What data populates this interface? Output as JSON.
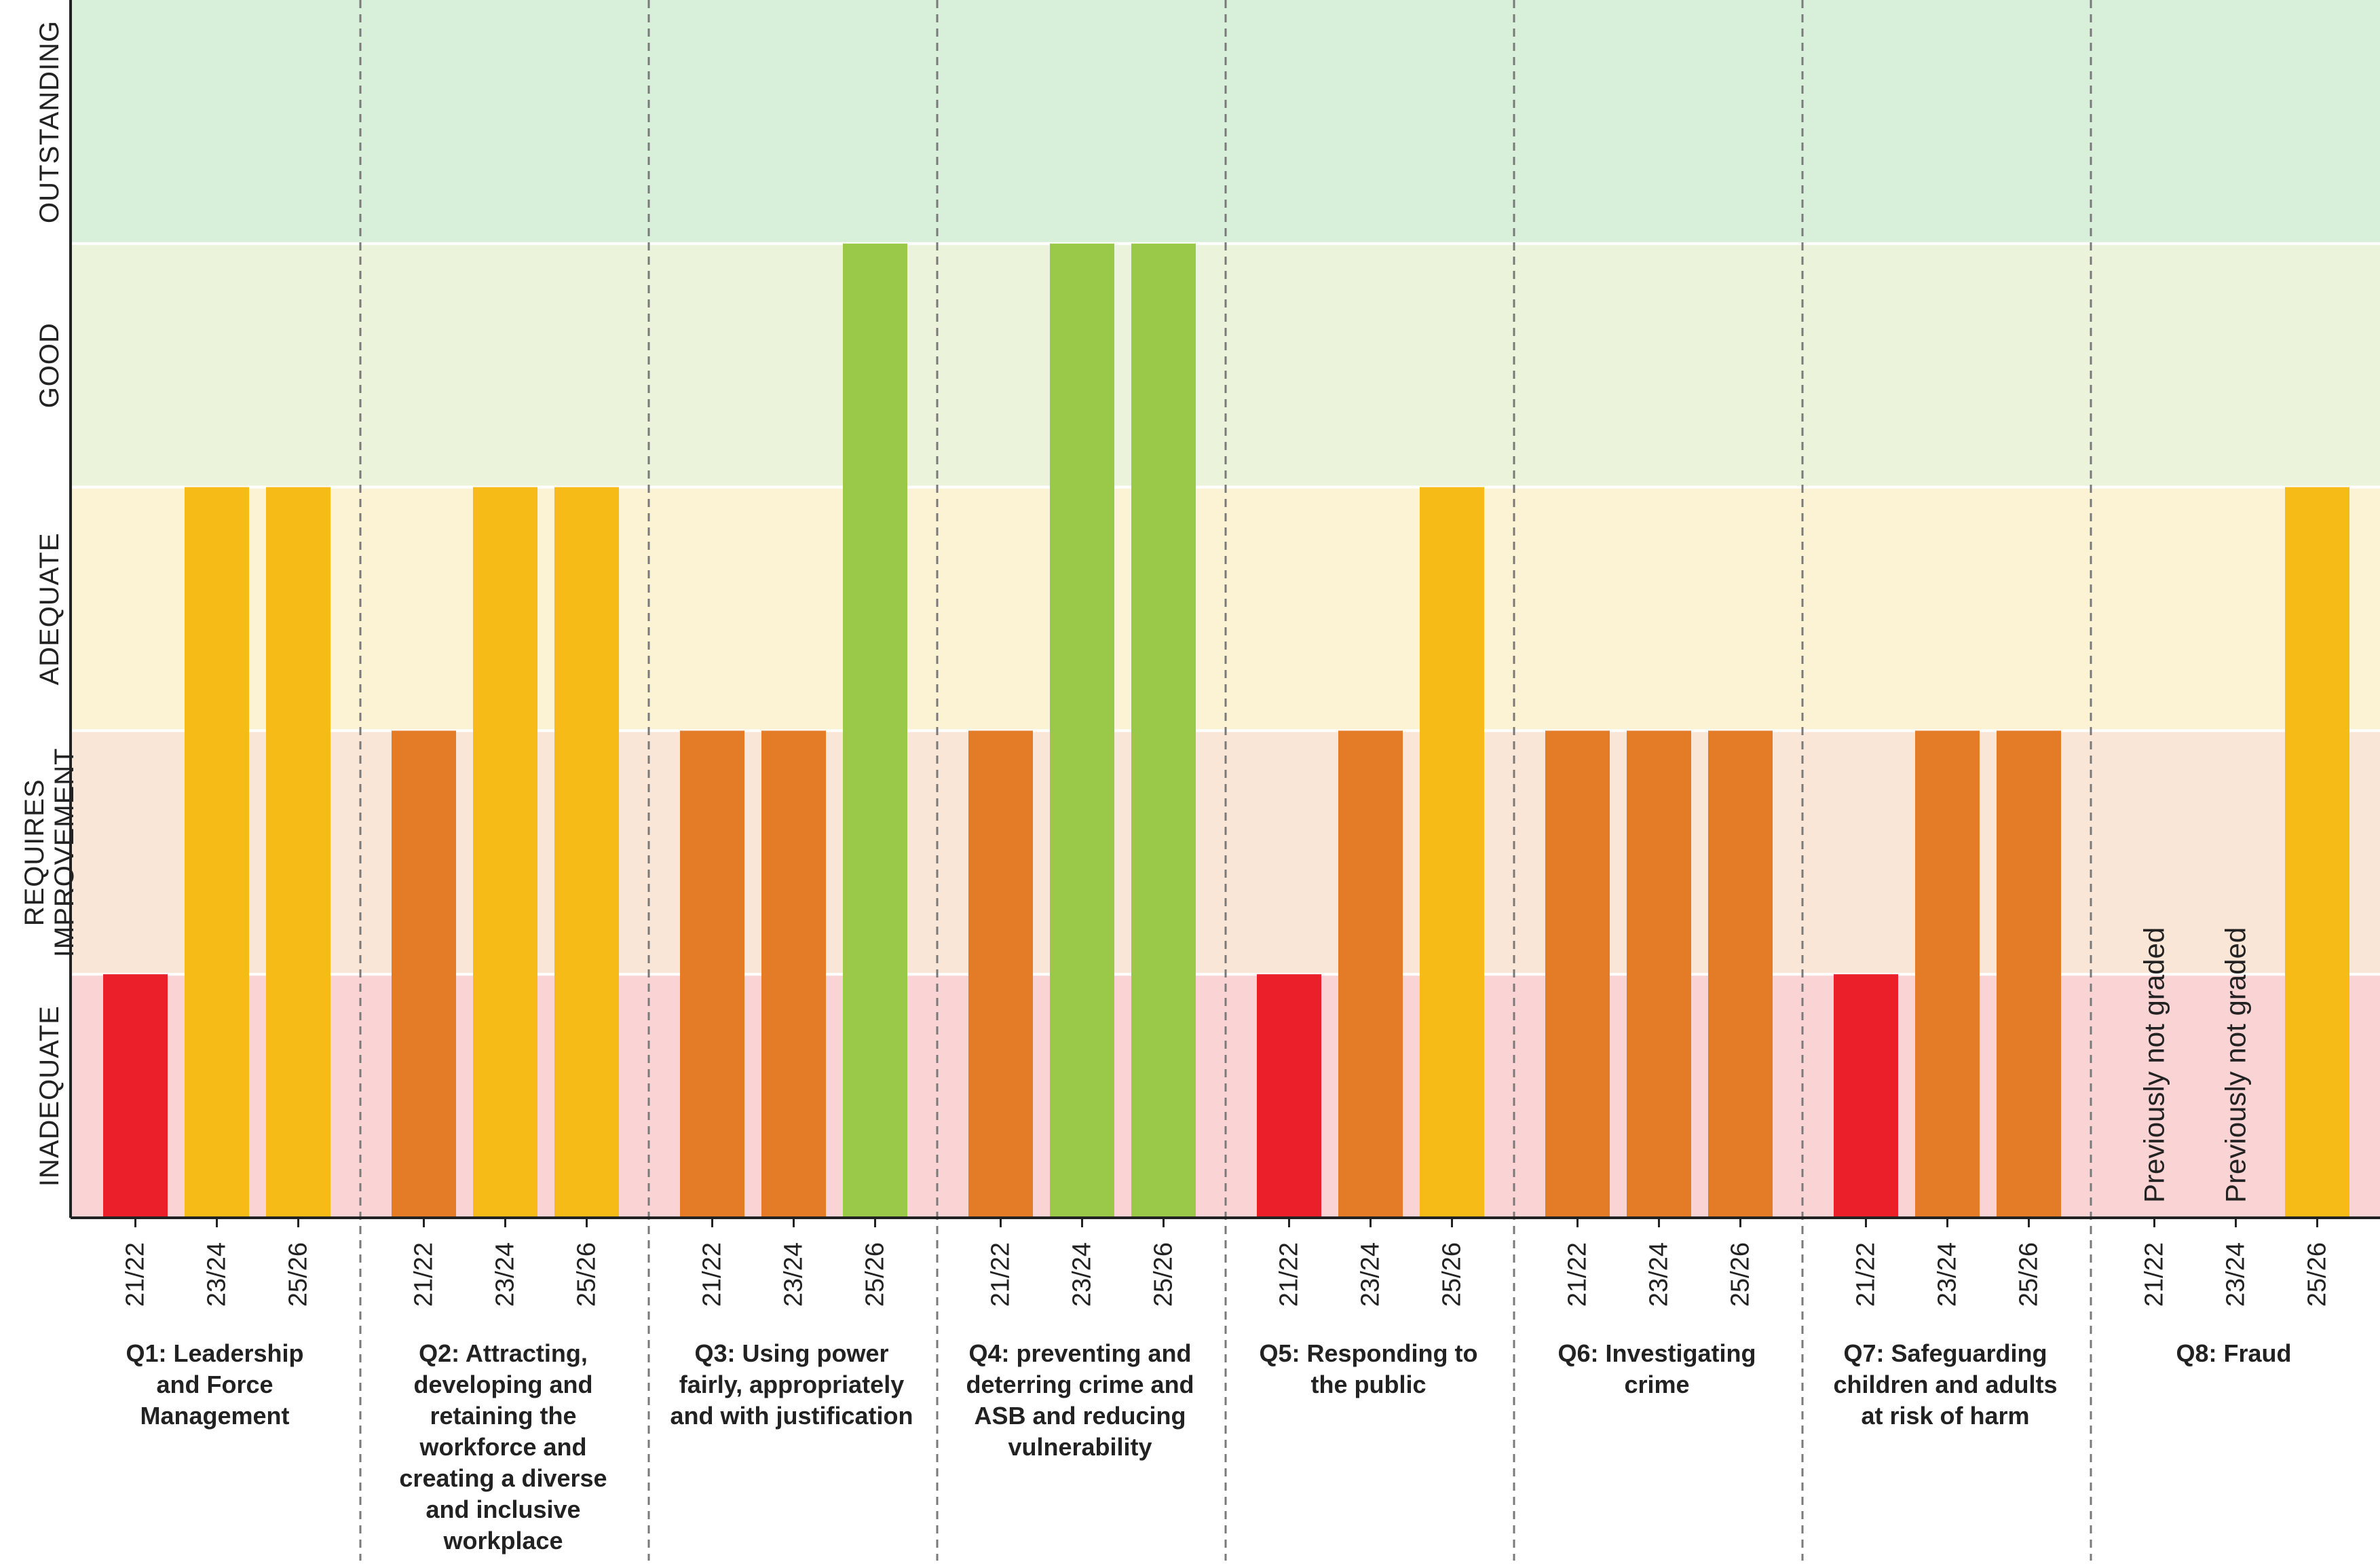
{
  "chart_data": {
    "type": "bar",
    "title": "",
    "xlabel": "",
    "ylabel": "",
    "grades": [
      "INADEQUATE",
      "REQUIRES IMPROVEMENT",
      "ADEQUATE",
      "GOOD",
      "OUTSTANDING"
    ],
    "grade_labels": [
      [
        "INADEQUATE"
      ],
      [
        "REQUIRES",
        "IMPROVEMENT"
      ],
      [
        "ADEQUATE"
      ],
      [
        "GOOD"
      ],
      [
        "OUTSTANDING"
      ]
    ],
    "ylim": [
      0,
      5
    ],
    "band_colors": [
      "#fad4d4",
      "#fae6d6",
      "#fcf3d4",
      "#ebf3da",
      "#d8efda"
    ],
    "grade_colors": {
      "1": "#ea1f29",
      "2": "#e47c27",
      "3": "#f6bb17",
      "4": "#9ac94a"
    },
    "periods": [
      "21/22",
      "23/24",
      "25/26"
    ],
    "groups": [
      {
        "label": [
          "Q1: Leadership",
          "and Force",
          "Management"
        ],
        "values": [
          1,
          3,
          3
        ],
        "notes": [
          "",
          "",
          ""
        ]
      },
      {
        "label": [
          "Q2: Attracting,",
          "developing and",
          "retaining the",
          "workforce and",
          "creating a diverse",
          "and inclusive",
          "workplace"
        ],
        "values": [
          2,
          3,
          3
        ],
        "notes": [
          "",
          "",
          ""
        ]
      },
      {
        "label": [
          "Q3: Using power",
          "fairly, appropriately",
          "and with justification"
        ],
        "values": [
          2,
          2,
          4
        ],
        "notes": [
          "",
          "",
          ""
        ]
      },
      {
        "label": [
          "Q4: preventing and",
          "deterring crime and",
          "ASB and reducing",
          "vulnerability"
        ],
        "values": [
          2,
          4,
          4
        ],
        "notes": [
          "",
          "",
          ""
        ]
      },
      {
        "label": [
          "Q5: Responding to",
          "the public"
        ],
        "values": [
          1,
          2,
          3
        ],
        "notes": [
          "",
          "",
          ""
        ]
      },
      {
        "label": [
          "Q6: Investigating",
          "crime"
        ],
        "values": [
          2,
          2,
          2
        ],
        "notes": [
          "",
          "",
          ""
        ]
      },
      {
        "label": [
          "Q7: Safeguarding",
          "children and adults",
          "at risk of harm"
        ],
        "values": [
          1,
          2,
          2
        ],
        "notes": [
          "",
          "",
          ""
        ]
      },
      {
        "label": [
          "Q8: Fraud"
        ],
        "values": [
          null,
          null,
          3
        ],
        "notes": [
          "Previously not graded",
          "Previously not graded",
          ""
        ]
      }
    ]
  }
}
